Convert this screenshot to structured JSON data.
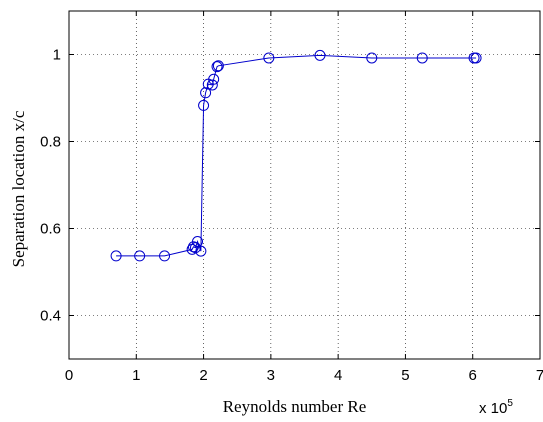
{
  "chart_data": {
    "type": "line",
    "title": "",
    "xlabel": "Reynolds number Re",
    "ylabel": "Separation location x/c",
    "x_multiplier": {
      "prefix": "x 10",
      "exponent": "5"
    },
    "xlim": [
      0,
      7
    ],
    "ylim": [
      0.3,
      1.1
    ],
    "xticks": [
      0,
      1,
      2,
      3,
      4,
      5,
      6,
      7
    ],
    "xtick_labels": [
      "0",
      "1",
      "2",
      "3",
      "4",
      "5",
      "6",
      "7"
    ],
    "yticks": [
      0.4,
      0.6,
      0.8,
      1.0
    ],
    "ytick_labels": [
      "0.4",
      "0.6",
      "0.8",
      "1"
    ],
    "grid": true,
    "grid_style": "dotted",
    "color": "#0000cc",
    "marker": "open-circle",
    "series": [
      {
        "x": [
          0.7,
          1.05,
          1.42,
          1.83,
          1.85,
          1.88,
          1.91,
          1.96,
          2.0,
          2.03,
          2.07,
          2.13,
          2.15,
          2.2,
          2.22,
          2.97,
          3.73,
          4.5,
          5.25,
          6.02,
          6.05
        ],
        "y": [
          0.537,
          0.537,
          0.537,
          0.552,
          0.558,
          0.556,
          0.57,
          0.548,
          0.883,
          0.912,
          0.932,
          0.93,
          0.943,
          0.972,
          0.974,
          0.992,
          0.998,
          0.992,
          0.992,
          0.992,
          0.992
        ]
      }
    ]
  }
}
